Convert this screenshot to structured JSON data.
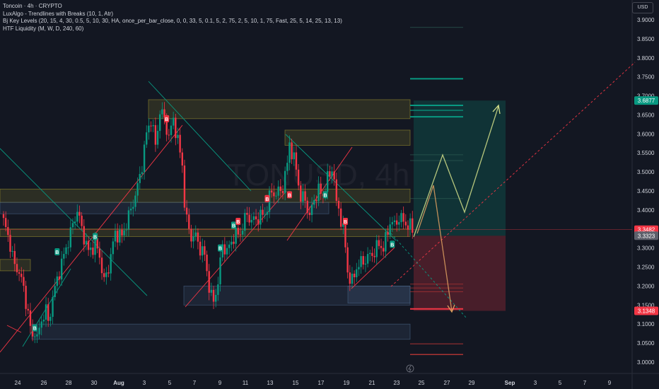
{
  "legend": {
    "title": "Toncoin · 4h · CRYPTO",
    "ind1": "LuxAlgo - Trendlines with Breaks (10, 1, Atr)",
    "ind2": "Bj Key Levels (20, 15, 4, 30, 0.5, 5, 10, 30, HA, once_per_bar_close, 0, 0, 33, 5, 0.1, 5, 2, 75, 2, 5, 10, 1, 75, Fast, 25, 5, 14, 25, 13, 13)",
    "ind3": "HTF Liquidity (M, W, D, 240, 60)"
  },
  "currency_button": "USD",
  "watermark": "TONUSD, 4h",
  "colors": {
    "up": "#089981",
    "down": "#f23645",
    "bg": "#131722",
    "grid": "#1e222d",
    "zone_yellow": "#b5a731",
    "zone_blue": "#4f6a8f",
    "target": "#089981",
    "stop": "#f23645"
  },
  "chart_data": {
    "type": "candlestick",
    "symbol": "TONUSD",
    "interval": "4h",
    "ylim": [
      2.99,
      3.93
    ],
    "y_ticks": [
      "3.0000",
      "3.0500",
      "3.1000",
      "3.1500",
      "3.2000",
      "3.2500",
      "3.3000",
      "3.3500",
      "3.4000",
      "3.4500",
      "3.5000",
      "3.5500",
      "3.6000",
      "3.6500",
      "3.7000",
      "3.7500",
      "3.8000",
      "3.8500",
      "3.9000"
    ],
    "x_ticks": [
      "24",
      "26",
      "28",
      "30",
      "Aug",
      "3",
      "5",
      "7",
      "9",
      "11",
      "13",
      "15",
      "17",
      "19",
      "21",
      "23",
      "25",
      "27",
      "29",
      "Sep",
      "3",
      "5",
      "7",
      "9"
    ],
    "price_labels": [
      {
        "value": "3.6877",
        "role": "target",
        "color": "#089981"
      },
      {
        "value": "3.3482",
        "role": "last",
        "color": "#f23645"
      },
      {
        "value": "3.3323",
        "role": "entry",
        "color": "#5d606b"
      },
      {
        "value": "3.1348",
        "role": "stop",
        "color": "#f23645"
      }
    ],
    "close_path": [
      [
        0,
        3.37
      ],
      [
        3,
        3.31
      ],
      [
        5,
        3.25
      ],
      [
        7,
        3.24
      ],
      [
        9,
        3.19
      ],
      [
        11,
        3.13
      ],
      [
        12,
        3.09
      ],
      [
        13,
        3.06
      ],
      [
        14,
        3.09
      ],
      [
        15,
        3.06
      ],
      [
        17,
        3.11
      ],
      [
        19,
        3.14
      ],
      [
        20,
        3.1
      ],
      [
        22,
        3.17
      ],
      [
        25,
        3.24
      ],
      [
        28,
        3.3
      ],
      [
        30,
        3.34
      ],
      [
        33,
        3.4
      ],
      [
        35,
        3.35
      ],
      [
        38,
        3.29
      ],
      [
        41,
        3.31
      ],
      [
        43,
        3.28
      ],
      [
        45,
        3.21
      ],
      [
        47,
        3.25
      ],
      [
        50,
        3.34
      ],
      [
        53,
        3.33
      ],
      [
        57,
        3.4
      ],
      [
        60,
        3.46
      ],
      [
        62,
        3.52
      ],
      [
        64,
        3.6
      ],
      [
        66,
        3.64
      ],
      [
        68,
        3.57
      ],
      [
        70,
        3.66
      ],
      [
        72,
        3.64
      ],
      [
        74,
        3.59
      ],
      [
        76,
        3.64
      ],
      [
        78,
        3.58
      ],
      [
        80,
        3.52
      ],
      [
        81,
        3.42
      ],
      [
        82,
        3.37
      ],
      [
        84,
        3.33
      ],
      [
        86,
        3.33
      ],
      [
        88,
        3.3
      ],
      [
        90,
        3.28
      ],
      [
        92,
        3.2
      ],
      [
        93,
        3.17
      ],
      [
        94,
        3.16
      ],
      [
        96,
        3.21
      ],
      [
        98,
        3.31
      ],
      [
        100,
        3.29
      ],
      [
        103,
        3.33
      ],
      [
        106,
        3.34
      ],
      [
        109,
        3.39
      ],
      [
        111,
        3.37
      ],
      [
        114,
        3.38
      ],
      [
        117,
        3.39
      ],
      [
        120,
        3.45
      ],
      [
        122,
        3.44
      ],
      [
        125,
        3.46
      ],
      [
        127,
        3.52
      ],
      [
        128,
        3.58
      ],
      [
        129,
        3.55
      ],
      [
        131,
        3.51
      ],
      [
        133,
        3.43
      ],
      [
        135,
        3.43
      ],
      [
        137,
        3.38
      ],
      [
        139,
        3.43
      ],
      [
        141,
        3.45
      ],
      [
        143,
        3.44
      ],
      [
        145,
        3.48
      ],
      [
        147,
        3.51
      ],
      [
        148,
        3.48
      ],
      [
        149,
        3.41
      ],
      [
        150,
        3.41
      ],
      [
        151,
        3.37
      ],
      [
        152,
        3.35
      ],
      [
        153,
        3.3
      ],
      [
        154,
        3.24
      ],
      [
        155,
        3.22
      ],
      [
        156,
        3.21
      ],
      [
        158,
        3.25
      ],
      [
        160,
        3.26
      ],
      [
        162,
        3.27
      ],
      [
        164,
        3.28
      ],
      [
        166,
        3.29
      ],
      [
        168,
        3.31
      ],
      [
        170,
        3.3
      ],
      [
        171,
        3.32
      ],
      [
        173,
        3.37
      ],
      [
        175,
        3.36
      ],
      [
        177,
        3.38
      ],
      [
        179,
        3.37
      ],
      [
        181,
        3.36
      ],
      [
        183,
        3.35
      ]
    ],
    "zones": [
      {
        "type": "supply",
        "top": 3.69,
        "bottom": 3.64
      },
      {
        "type": "supply",
        "top": 3.61,
        "bottom": 3.57
      },
      {
        "type": "supply",
        "top": 3.455,
        "bottom": 3.42
      },
      {
        "type": "supply",
        "top": 3.35,
        "bottom": 3.33
      },
      {
        "type": "supply",
        "top": 3.27,
        "bottom": 3.24
      },
      {
        "type": "demand",
        "top": 3.2,
        "bottom": 3.15
      },
      {
        "type": "demand",
        "top": 3.42,
        "bottom": 3.39
      },
      {
        "type": "demand",
        "top": 3.1,
        "bottom": 3.06
      }
    ],
    "position": {
      "entry": 3.3323,
      "target": 3.6877,
      "stop": 3.1348
    },
    "markers": [
      {
        "i": 14,
        "label": "B",
        "kind": "buy",
        "price": 3.09
      },
      {
        "i": 24,
        "label": "B",
        "kind": "buy",
        "price": 3.29
      },
      {
        "i": 41,
        "label": "B",
        "kind": "buy",
        "price": 3.33
      },
      {
        "i": 73,
        "label": "B",
        "kind": "sell",
        "price": 3.64
      },
      {
        "i": 97,
        "label": "B",
        "kind": "buy",
        "price": 3.3
      },
      {
        "i": 103,
        "label": "B",
        "kind": "buy",
        "price": 3.36
      },
      {
        "i": 105,
        "label": "B",
        "kind": "sell",
        "price": 3.37
      },
      {
        "i": 118,
        "label": "B",
        "kind": "sell",
        "price": 3.43
      },
      {
        "i": 128,
        "label": "B",
        "kind": "sell",
        "price": 3.44
      },
      {
        "i": 144,
        "label": "B",
        "kind": "buy",
        "price": 3.44
      },
      {
        "i": 153,
        "label": "B",
        "kind": "sell",
        "price": 3.37
      },
      {
        "i": 174,
        "label": "B",
        "kind": "buy",
        "price": 3.31
      }
    ],
    "grid": false,
    "legend_position": "top-left"
  }
}
